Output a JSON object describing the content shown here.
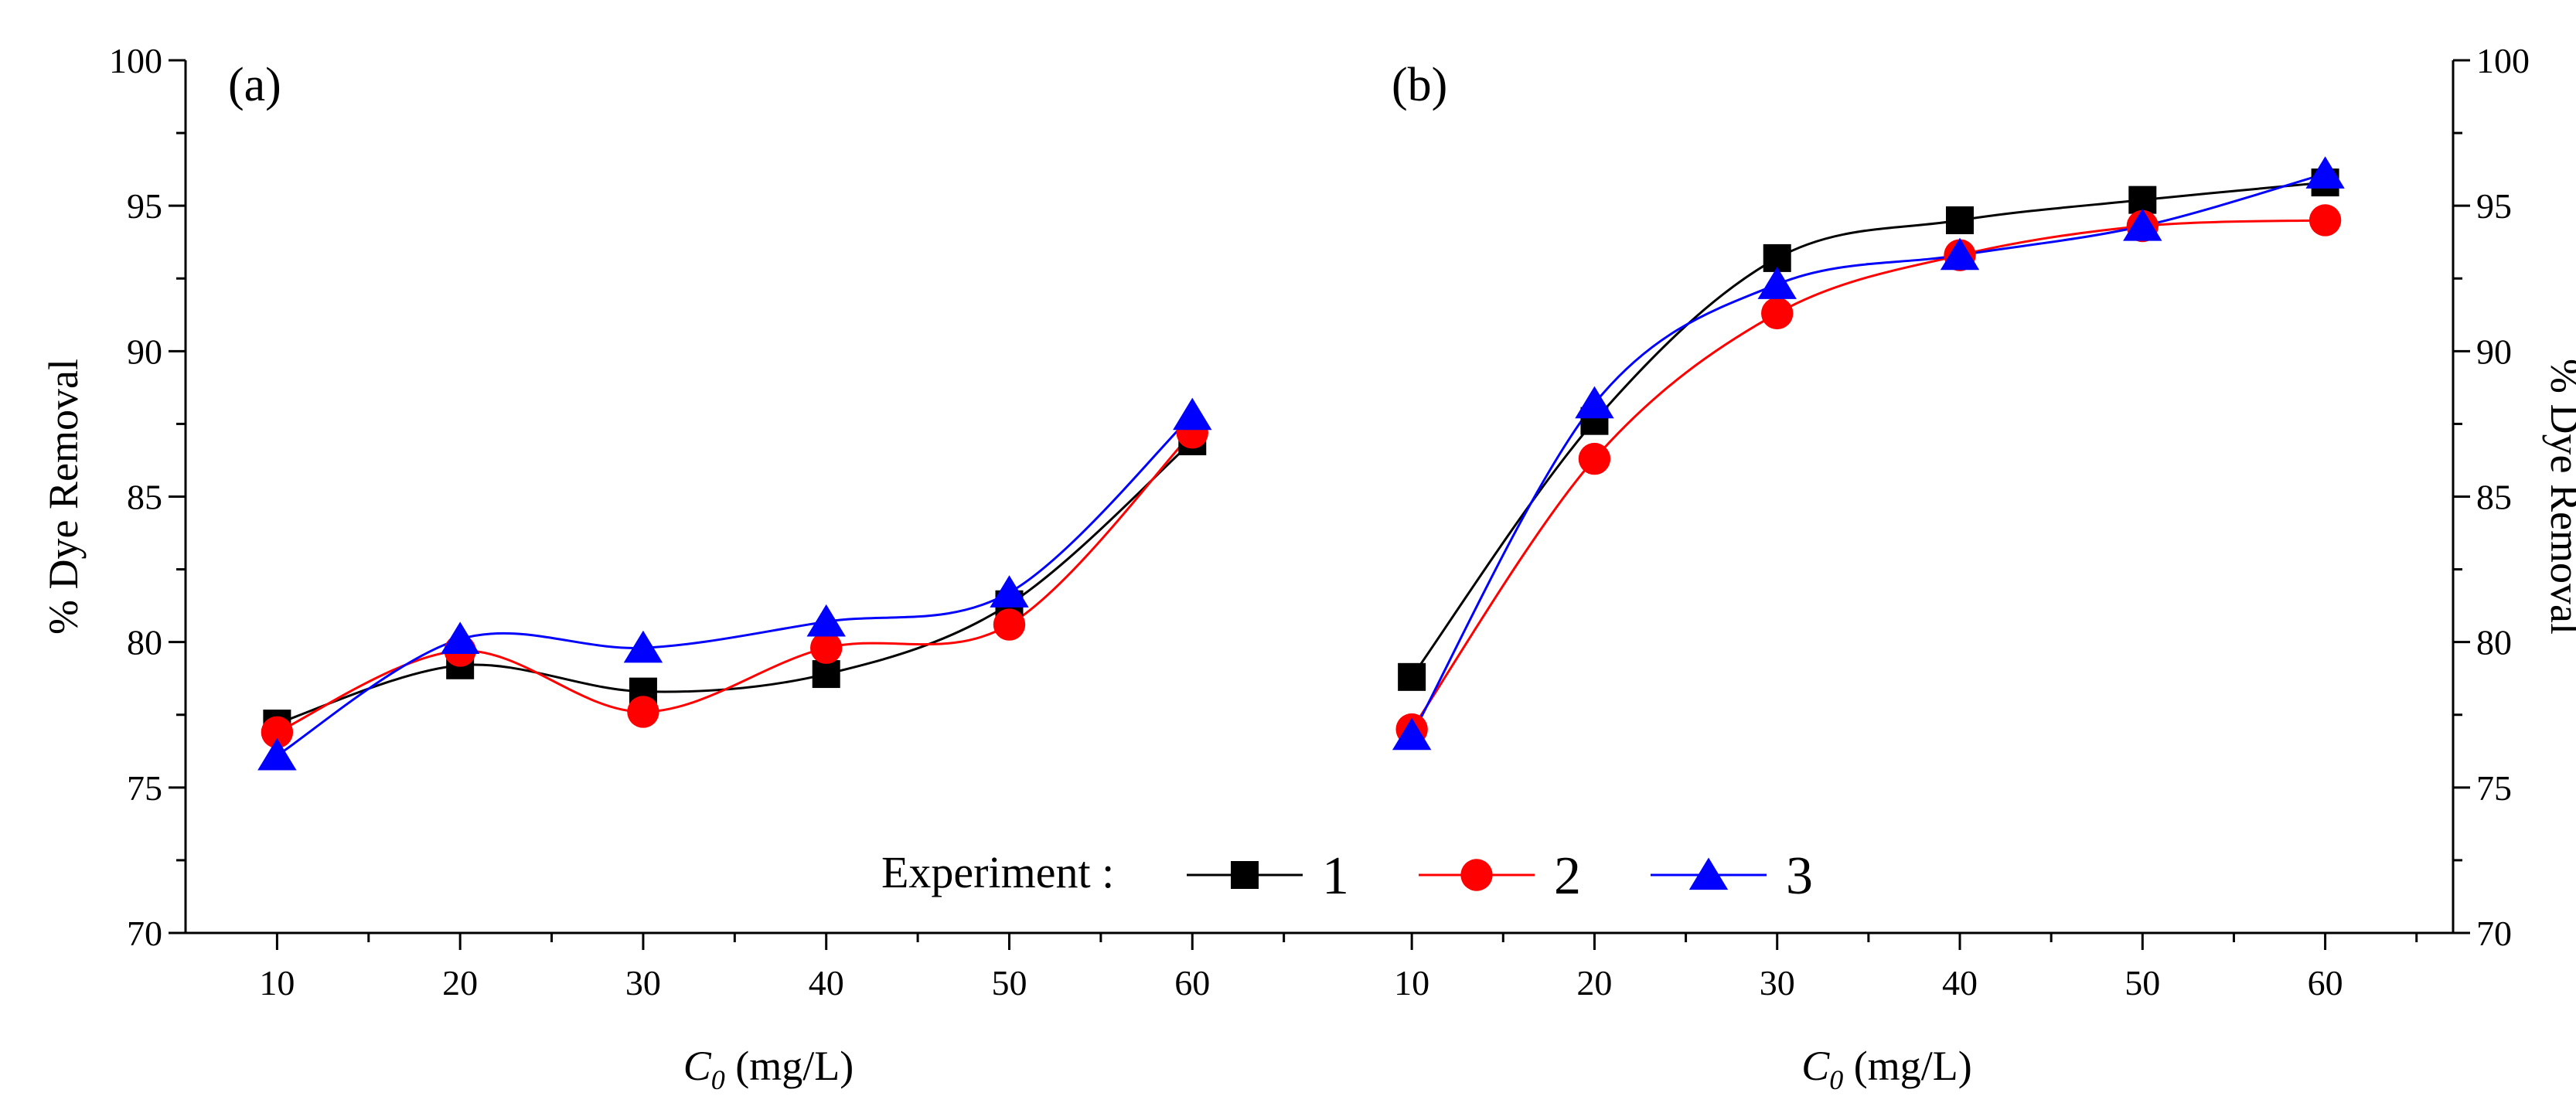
{
  "chart_data": [
    {
      "panel": "(a)",
      "type": "line",
      "xlabel": "C0 (mg/L)",
      "xlabel_main": "C",
      "xlabel_sub": "0",
      "xlabel_unit": " (mg/L)",
      "ylabel": "% Dye Removal",
      "xlim": [
        5,
        67
      ],
      "ylim": [
        70,
        100
      ],
      "x": [
        10,
        20,
        30,
        40,
        50,
        60
      ],
      "x_ticks": [
        10,
        20,
        30,
        40,
        50,
        60
      ],
      "y_ticks": [
        70,
        75,
        80,
        85,
        90,
        95,
        100
      ],
      "y_axis_side": "left",
      "series": [
        {
          "name": "1",
          "color": "#000000",
          "marker": "square",
          "values": [
            77.2,
            79.2,
            78.3,
            78.9,
            81.3,
            86.9
          ]
        },
        {
          "name": "2",
          "color": "#ff0000",
          "marker": "circle",
          "values": [
            76.9,
            79.7,
            77.6,
            79.8,
            80.6,
            87.2
          ]
        },
        {
          "name": "3",
          "color": "#0000ff",
          "marker": "triangle",
          "values": [
            76.1,
            80.1,
            79.8,
            80.7,
            81.7,
            87.8
          ]
        }
      ]
    },
    {
      "panel": "(b)",
      "type": "line",
      "xlabel": "C0 (mg/L)",
      "xlabel_main": "C",
      "xlabel_sub": "0",
      "xlabel_unit": " (mg/L)",
      "ylabel": "% Dye Removal",
      "xlim": [
        5,
        67
      ],
      "ylim": [
        70,
        100
      ],
      "x": [
        10,
        20,
        30,
        40,
        50,
        60
      ],
      "x_ticks": [
        10,
        20,
        30,
        40,
        50,
        60
      ],
      "y_ticks": [
        70,
        75,
        80,
        85,
        90,
        95,
        100
      ],
      "y_axis_side": "right",
      "series": [
        {
          "name": "1",
          "color": "#000000",
          "marker": "square",
          "values": [
            78.8,
            87.6,
            93.2,
            94.5,
            95.2,
            95.8
          ]
        },
        {
          "name": "2",
          "color": "#ff0000",
          "marker": "circle",
          "values": [
            77.0,
            86.3,
            91.3,
            93.3,
            94.3,
            94.5
          ]
        },
        {
          "name": "3",
          "color": "#0000ff",
          "marker": "triangle",
          "values": [
            76.8,
            88.2,
            92.3,
            93.3,
            94.3,
            96.1
          ]
        }
      ]
    }
  ],
  "legend": {
    "title": "Experiment :",
    "items": [
      {
        "label": "1",
        "color": "#000000",
        "marker": "square"
      },
      {
        "label": "2",
        "color": "#ff0000",
        "marker": "circle"
      },
      {
        "label": "3",
        "color": "#0000ff",
        "marker": "triangle"
      }
    ]
  }
}
